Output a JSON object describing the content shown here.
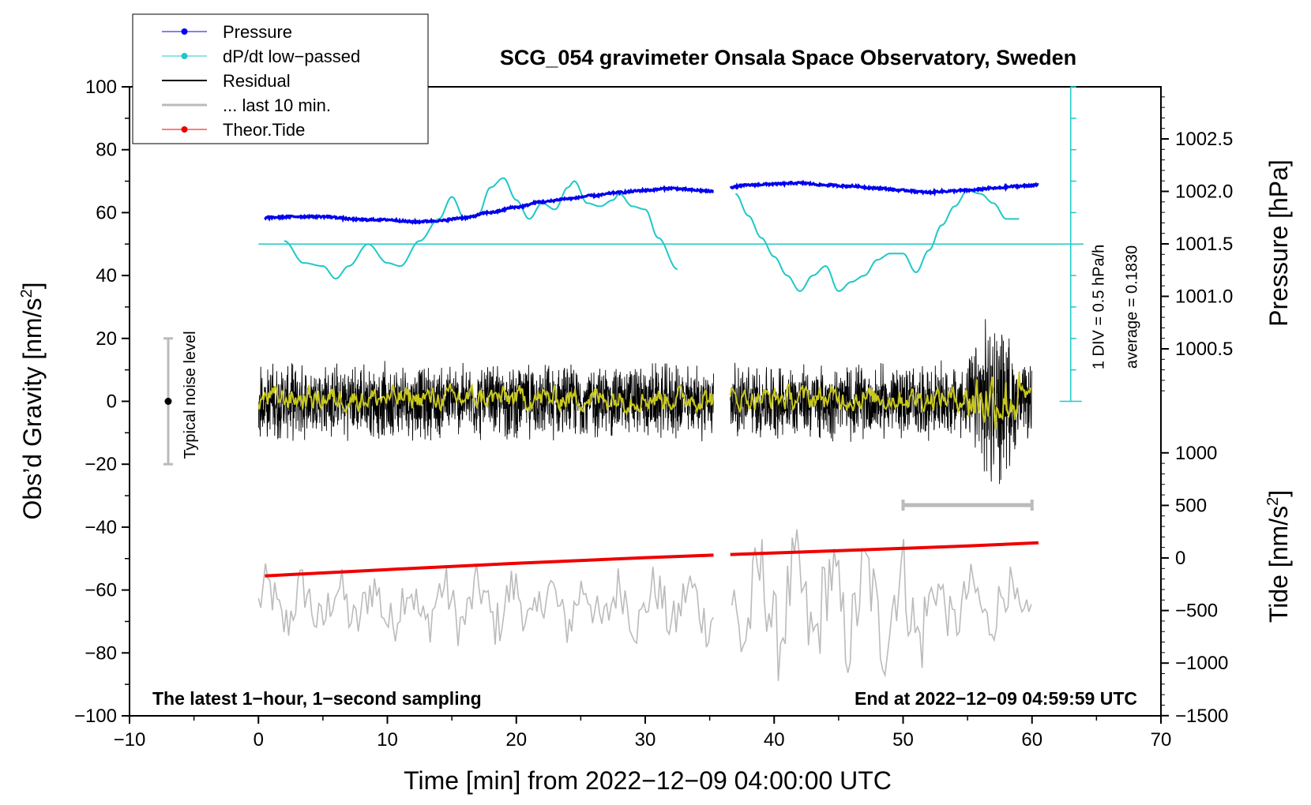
{
  "chart_data": {
    "type": "line",
    "title": "SCG_054 gravimeter Onsala Space Observatory, Sweden",
    "xlabel": "Time [min] from 2022−12−09 04:00:00 UTC",
    "ylabel_left": "Obs’d Gravity [nm/s",
    "ylabel_left_sup": "2",
    "ylabel_left_end": "]",
    "ylabel_right_pressure": "Pressure [hPa]",
    "ylabel_right_tide": "Tide [nm/s",
    "ylabel_right_tide_sup": "2",
    "ylabel_right_tide_end": "]",
    "xlim": [
      -10,
      70
    ],
    "ylim_left": [
      -100,
      100
    ],
    "x_ticks": [
      "−10",
      "0",
      "10",
      "20",
      "30",
      "40",
      "50",
      "60",
      "70"
    ],
    "y_ticks_left": [
      "100",
      "80",
      "60",
      "40",
      "20",
      "0",
      "−20",
      "−40",
      "−60",
      "−80",
      "−100"
    ],
    "y_ticks_pressure": [
      "1002.5",
      "1002.0",
      "1001.5",
      "1001.0",
      "1000.5"
    ],
    "y_ticks_tide": [
      "1000",
      "500",
      "0",
      "−500",
      "−1000",
      "−1500"
    ],
    "pressure_range_hpa": [
      1000.0,
      1003.0
    ],
    "tide_range": [
      -1500,
      1500
    ],
    "legend": {
      "position": "top-left",
      "items": [
        {
          "label": "Pressure",
          "color": "#0000ee",
          "marker": "dot"
        },
        {
          "label": "dP/dt low−passed",
          "color": "#1fc8c8",
          "marker": "dot"
        },
        {
          "label": "Residual",
          "color": "#000000",
          "marker": "none"
        },
        {
          "label": "... last 10 min.",
          "color": "#bbbbbb",
          "marker": "none"
        },
        {
          "label": "Theor.Tide",
          "color": "#ee0000",
          "marker": "dot"
        }
      ]
    },
    "annotations": {
      "sampling_note": "The latest 1−hour, 1−second sampling",
      "end_note": "End at 2022−12−09 04:59:59 UTC",
      "noise_label": "Typical noise level",
      "dpdt_scale": "1 DIV = 0.5 hPa/h",
      "dpdt_average": "average = 0.1830"
    },
    "noise_bar": {
      "x": -7,
      "center": 0,
      "low": -20,
      "high": 20
    },
    "last10_bar": {
      "x_start": 50,
      "x_end": 60,
      "y": -33
    },
    "dpdt_axis": {
      "x": 63,
      "y_min": 0,
      "y_max": 100,
      "baseline": 50
    },
    "gap_minutes": [
      35.3,
      36.6
    ],
    "series": [
      {
        "name": "Pressure",
        "color": "#0000ee",
        "unit": "hPa",
        "points": [
          [
            0.5,
            1001.75
          ],
          [
            3,
            1001.76
          ],
          [
            5,
            1001.76
          ],
          [
            8,
            1001.73
          ],
          [
            10,
            1001.73
          ],
          [
            12,
            1001.71
          ],
          [
            14,
            1001.72
          ],
          [
            16,
            1001.75
          ],
          [
            18,
            1001.8
          ],
          [
            20,
            1001.85
          ],
          [
            22,
            1001.9
          ],
          [
            24,
            1001.93
          ],
          [
            26,
            1001.96
          ],
          [
            28,
            1001.99
          ],
          [
            30,
            1002.01
          ],
          [
            32,
            1002.03
          ],
          [
            33,
            1002.02
          ],
          [
            34,
            1002.01
          ],
          [
            35.3,
            1002.0
          ],
          [
            36.6,
            1002.04
          ],
          [
            38,
            1002.06
          ],
          [
            40,
            1002.07
          ],
          [
            42,
            1002.08
          ],
          [
            44,
            1002.06
          ],
          [
            46,
            1002.05
          ],
          [
            48,
            1002.03
          ],
          [
            50,
            1002.01
          ],
          [
            52,
            1001.99
          ],
          [
            53,
            1002.0
          ],
          [
            55,
            1002.01
          ],
          [
            57,
            1002.03
          ],
          [
            59,
            1002.05
          ],
          [
            60.5,
            1002.06
          ]
        ]
      },
      {
        "name": "dP/dt low−passed",
        "color": "#1fc8c8",
        "unit": "nm/s2-scale",
        "points": [
          [
            2,
            51
          ],
          [
            3.5,
            44
          ],
          [
            5,
            43
          ],
          [
            6,
            39
          ],
          [
            7,
            43
          ],
          [
            8.5,
            50
          ],
          [
            10,
            44
          ],
          [
            11,
            43
          ],
          [
            12.5,
            51
          ],
          [
            14,
            58
          ],
          [
            15,
            65
          ],
          [
            16,
            58
          ],
          [
            17,
            59
          ],
          [
            18,
            68
          ],
          [
            19,
            71
          ],
          [
            20,
            64
          ],
          [
            21,
            58
          ],
          [
            22,
            63
          ],
          [
            23,
            61
          ],
          [
            24,
            68
          ],
          [
            24.5,
            70
          ],
          [
            25.5,
            63
          ],
          [
            26.5,
            62
          ],
          [
            27.5,
            64
          ],
          [
            28,
            66
          ],
          [
            29,
            62
          ],
          [
            30,
            61
          ],
          [
            31,
            52
          ],
          [
            32.5,
            42
          ],
          [
            37,
            66
          ],
          [
            38,
            59
          ],
          [
            39,
            52
          ],
          [
            40,
            46
          ],
          [
            41,
            40
          ],
          [
            42,
            35
          ],
          [
            43,
            40
          ],
          [
            44,
            43
          ],
          [
            45,
            35
          ],
          [
            46,
            38
          ],
          [
            47,
            40
          ],
          [
            48,
            45
          ],
          [
            49,
            47
          ],
          [
            50,
            47
          ],
          [
            51,
            41
          ],
          [
            52,
            48
          ],
          [
            53,
            56
          ],
          [
            54,
            62
          ],
          [
            55,
            67
          ],
          [
            56,
            66
          ],
          [
            57,
            63
          ],
          [
            58,
            58
          ],
          [
            59,
            58
          ]
        ]
      },
      {
        "name": "Residual",
        "color": "#000000",
        "unit": "nm/s2",
        "amplitude": 12,
        "burst_window": [
          55,
          59
        ],
        "segments": [
          [
            0,
            35.3
          ],
          [
            36.6,
            60
          ]
        ]
      },
      {
        "name": "Residual low−passed",
        "color": "#c8c81e",
        "unit": "nm/s2",
        "amplitude": 3
      },
      {
        "name": "... last 10 min.",
        "color": "#bbbbbb",
        "unit": "nm/s2",
        "center": -65,
        "amplitude": 12
      },
      {
        "name": "Theor.Tide",
        "color": "#ee0000",
        "unit": "nm/s2",
        "points": [
          [
            0.5,
            -55.5
          ],
          [
            10,
            -53.5
          ],
          [
            20,
            -51.5
          ],
          [
            30,
            -49.7
          ],
          [
            35.3,
            -48.9
          ],
          [
            36.6,
            -48.7
          ],
          [
            45,
            -47.5
          ],
          [
            55,
            -46.0
          ],
          [
            60.5,
            -45.0
          ]
        ]
      }
    ]
  }
}
